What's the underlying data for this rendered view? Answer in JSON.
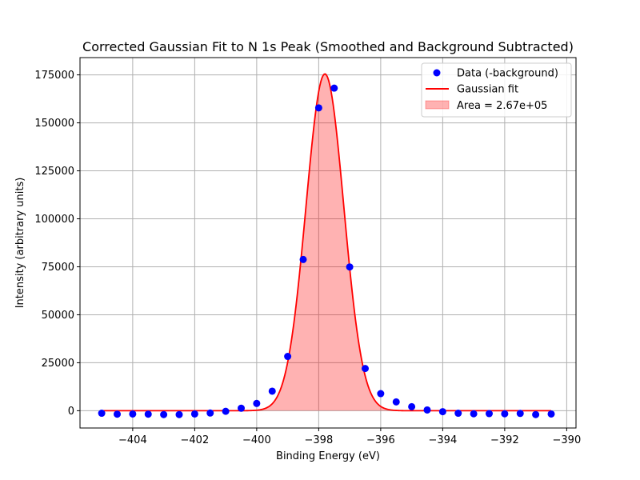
{
  "chart_data": {
    "type": "scatter",
    "title": "Corrected Gaussian Fit to N 1s Peak (Smoothed and Background Subtracted)",
    "xlabel": "Binding Energy (eV)",
    "ylabel": "Intensity (arbitrary units)",
    "xlim": [
      -405.7,
      -389.7
    ],
    "ylim": [
      -9000,
      184000
    ],
    "xticks": [
      -404,
      -402,
      -400,
      -398,
      -396,
      -394,
      -392,
      -390
    ],
    "xtick_labels": [
      "−404",
      "−402",
      "−400",
      "−398",
      "−396",
      "−394",
      "−392",
      "−390"
    ],
    "yticks": [
      0,
      25000,
      50000,
      75000,
      100000,
      125000,
      150000,
      175000
    ],
    "ytick_labels": [
      "0",
      "25000",
      "50000",
      "75000",
      "100000",
      "125000",
      "150000",
      "175000"
    ],
    "grid": true,
    "legend_position": "top-right",
    "series": [
      {
        "name": "Data (-background)",
        "kind": "scatter",
        "color": "#0000ff",
        "x": [
          -405.0,
          -404.5,
          -404.0,
          -403.5,
          -403.0,
          -402.5,
          -402.0,
          -401.5,
          -401.0,
          -400.5,
          -400.0,
          -399.5,
          -399.0,
          -398.5,
          -398.0,
          -397.5,
          -397.0,
          -396.5,
          -396.0,
          -395.5,
          -395.0,
          -394.5,
          -394.0,
          -393.5,
          -393.0,
          -392.5,
          -392.0,
          -391.5,
          -391.0,
          -390.5
        ],
        "y": [
          -1300,
          -1800,
          -1700,
          -1800,
          -2000,
          -2000,
          -1700,
          -1200,
          -300,
          1300,
          3800,
          10200,
          28300,
          78800,
          157800,
          168100,
          74900,
          22000,
          8900,
          4600,
          2100,
          400,
          -500,
          -1300,
          -1600,
          -1500,
          -1600,
          -1400,
          -2000,
          -1700
        ]
      },
      {
        "name": "Gaussian fit",
        "kind": "line",
        "color": "#ff0000",
        "amplitude": 175500,
        "center": -397.8,
        "sigma": 0.61,
        "x_range": [
          -405.0,
          -390.5
        ]
      },
      {
        "name": "Area = 2.67e+05",
        "kind": "area",
        "color": "#ff0000",
        "opacity": 0.3
      }
    ]
  }
}
